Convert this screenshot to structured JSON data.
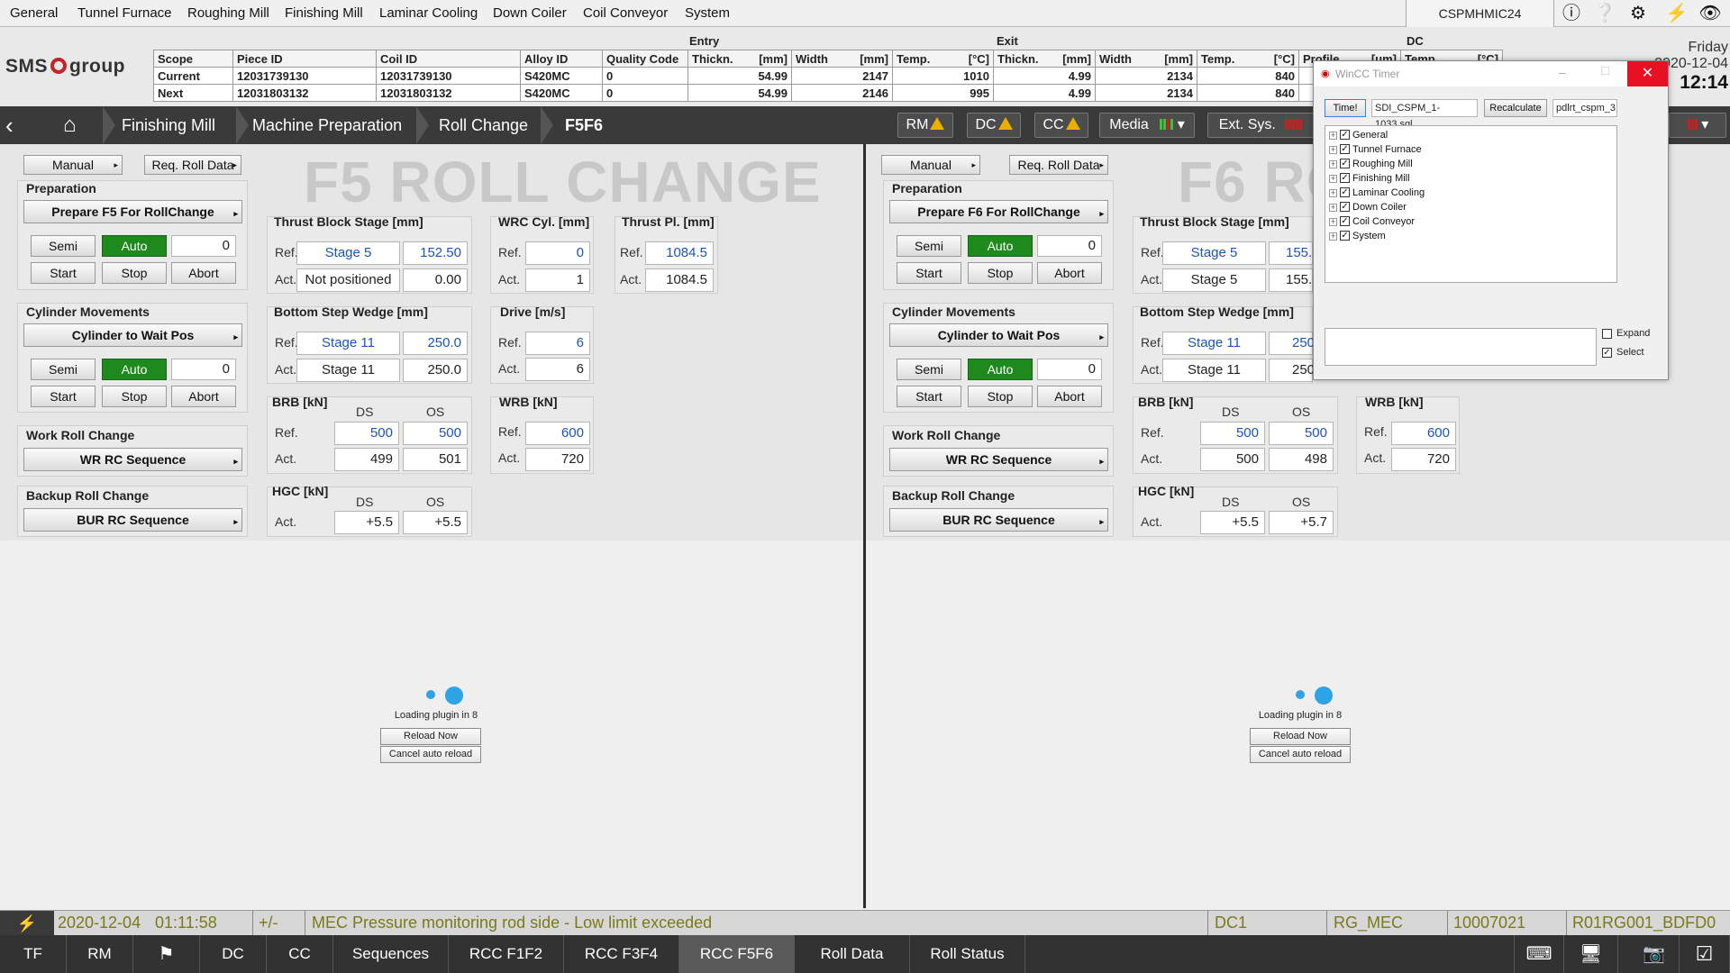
{
  "menu": [
    "General",
    "Tunnel Furnace",
    "Roughing Mill",
    "Finishing Mill",
    "Laminar Cooling",
    "Down Coiler",
    "Coil Conveyor",
    "System"
  ],
  "host": "CSPMHMIC24",
  "logo": {
    "left": "SMS",
    "right": "group"
  },
  "prod": {
    "entry_label": "Entry",
    "exit_label": "Exit",
    "dc_label": "DC",
    "headers": {
      "scope": "Scope",
      "piece": "Piece ID",
      "coil": "Coil ID",
      "alloy": "Alloy ID",
      "quality": "Quality Code",
      "thick": "Thickn.",
      "thick_u": "[mm]",
      "width": "Width",
      "width_u": "[mm]",
      "temp": "Temp.",
      "temp_u": "[°C]",
      "profile": "Profile",
      "profile_u": "[μm]",
      "dctemp": "Temp.",
      "dctemp_u": "[°C]"
    },
    "rows": [
      {
        "scope": "Current",
        "piece": "12031739130",
        "coil": "12031739130",
        "alloy": "S420MC",
        "quality": "0",
        "en_thick": "54.99",
        "en_width": "2147",
        "en_temp": "1010",
        "ex_thick": "4.99",
        "ex_width": "2134",
        "ex_temp": "840"
      },
      {
        "scope": "Next",
        "piece": "12031803132",
        "coil": "12031803132",
        "alloy": "S420MC",
        "quality": "0",
        "en_thick": "54.99",
        "en_width": "2146",
        "en_temp": "995",
        "ex_thick": "4.99",
        "ex_width": "2134",
        "ex_temp": "840"
      }
    ]
  },
  "clock": {
    "day": "Friday",
    "date": "2020-12-04",
    "time": "12:14"
  },
  "nav": {
    "crumbs": [
      "Finishing Mill",
      "Machine Preparation",
      "Roll Change",
      "F5F6"
    ],
    "rm": "RM",
    "dc": "DC",
    "cc": "CC",
    "media": "Media",
    "ext": "Ext. Sys."
  },
  "left": {
    "title": "F5 ROLL CHANGE",
    "manual": "Manual",
    "req": "Req. Roll Data",
    "prep_title": "Preparation",
    "prep_btn": "Prepare F5 For RollChange",
    "semi": "Semi",
    "auto": "Auto",
    "count1": "0",
    "start": "Start",
    "stop": "Stop",
    "abort": "Abort",
    "cyl_title": "Cylinder Movements",
    "cyl_btn": "Cylinder to Wait Pos",
    "count2": "0",
    "wr_title": "Work Roll Change",
    "wr_btn": "WR RC Sequence",
    "bur_title": "Backup Roll Change",
    "bur_btn": "BUR RC Sequence",
    "tb_title": "Thrust Block Stage",
    "tb_u": "[mm]",
    "tb_ref_stage": "Stage 5",
    "tb_ref_val": "152.50",
    "tb_act_stage": "Not positioned",
    "tb_act_val": "0.00",
    "wrc_title": "WRC Cyl.",
    "wrc_u": "[mm]",
    "wrc_ref": "0",
    "wrc_act": "1",
    "tp_title": "Thrust Pl.",
    "tp_u": "[mm]",
    "tp_ref": "1084.5",
    "tp_act": "1084.5",
    "bsw_title": "Bottom Step Wedge",
    "bsw_u": "[mm]",
    "bsw_ref_stage": "Stage 11",
    "bsw_ref_val": "250.0",
    "bsw_act_stage": "Stage 11",
    "bsw_act_val": "250.0",
    "drv_title": "Drive",
    "drv_u": "[m/s]",
    "drv_ref": "6",
    "drv_act": "6",
    "brb_title": "BRB",
    "brb_u": "[kN]",
    "ds": "DS",
    "os": "OS",
    "brb_ref_ds": "500",
    "brb_ref_os": "500",
    "brb_act_ds": "499",
    "brb_act_os": "501",
    "wrb_title": "WRB",
    "wrb_u": "[kN]",
    "wrb_ref": "600",
    "wrb_act": "720",
    "hgc_title": "HGC",
    "hgc_u": "[kN]",
    "hgc_ds": "+5.5",
    "hgc_os": "+5.5",
    "ref": "Ref.",
    "act": "Act."
  },
  "right": {
    "title": "F6 RO",
    "manual": "Manual",
    "req": "Req. Roll Data",
    "prep_title": "Preparation",
    "prep_btn": "Prepare F6 For RollChange",
    "semi": "Semi",
    "auto": "Auto",
    "count1": "0",
    "start": "Start",
    "stop": "Stop",
    "abort": "Abort",
    "cyl_title": "Cylinder Movements",
    "cyl_btn": "Cylinder to Wait Pos",
    "count2": "0",
    "wr_title": "Work Roll Change",
    "wr_btn": "WR RC Sequence",
    "bur_title": "Backup Roll Change",
    "bur_btn": "BUR RC Sequence",
    "tb_title": "Thrust Block Stage",
    "tb_u": "[mm]",
    "tb_ref_stage": "Stage 5",
    "tb_ref_val": "155.",
    "tb_act_stage": "Stage 5",
    "tb_act_val": "155.",
    "bsw_title": "Bottom Step Wedge",
    "bsw_u": "[mm]",
    "bsw_ref_stage": "Stage 11",
    "bsw_ref_val": "250",
    "bsw_act_stage": "Stage 11",
    "bsw_act_val": "250",
    "brb_title": "BRB",
    "brb_u": "[kN]",
    "ds": "DS",
    "os": "OS",
    "brb_ref_ds": "500",
    "brb_ref_os": "500",
    "brb_act_ds": "500",
    "brb_act_os": "498",
    "wrb_title": "WRB",
    "wrb_u": "[kN]",
    "wrb_ref": "600",
    "wrb_act": "720",
    "hgc_title": "HGC",
    "hgc_u": "[kN]",
    "hgc_ds": "+5.5",
    "hgc_os": "+5.7",
    "ref": "Ref.",
    "act": "Act."
  },
  "plugin": {
    "loading": "Loading plugin in 8",
    "reload": "Reload Now",
    "cancel": "Cancel auto reload"
  },
  "alarm": {
    "date": "2020-12-04",
    "time": "01:11:58",
    "sign": "+/-",
    "msg": "MEC Pressure monitoring rod side - Low limit exceeded",
    "area": "DC1",
    "group": "RG_MEC",
    "code": "10007021",
    "tag": "R01RG001_BDFD0"
  },
  "tabs": [
    "TF",
    "RM",
    "",
    "DC",
    "CC",
    "Sequences",
    "RCC F1F2",
    "RCC F3F4",
    "RCC F5F6",
    "Roll Data",
    "Roll Status"
  ],
  "popup": {
    "title": "WinCC Timer",
    "time_btn": "Time!",
    "file": "SDI_CSPM_1-1033.sql",
    "recalc": "Recalculate",
    "db": "pdlrt_cspm_3",
    "tree": [
      "General",
      "Tunnel Furnace",
      "Roughing Mill",
      "Finishing Mill",
      "Laminar Cooling",
      "Down Coiler",
      "Coil Conveyor",
      "System"
    ],
    "expand": "Expand",
    "select": "Select"
  }
}
